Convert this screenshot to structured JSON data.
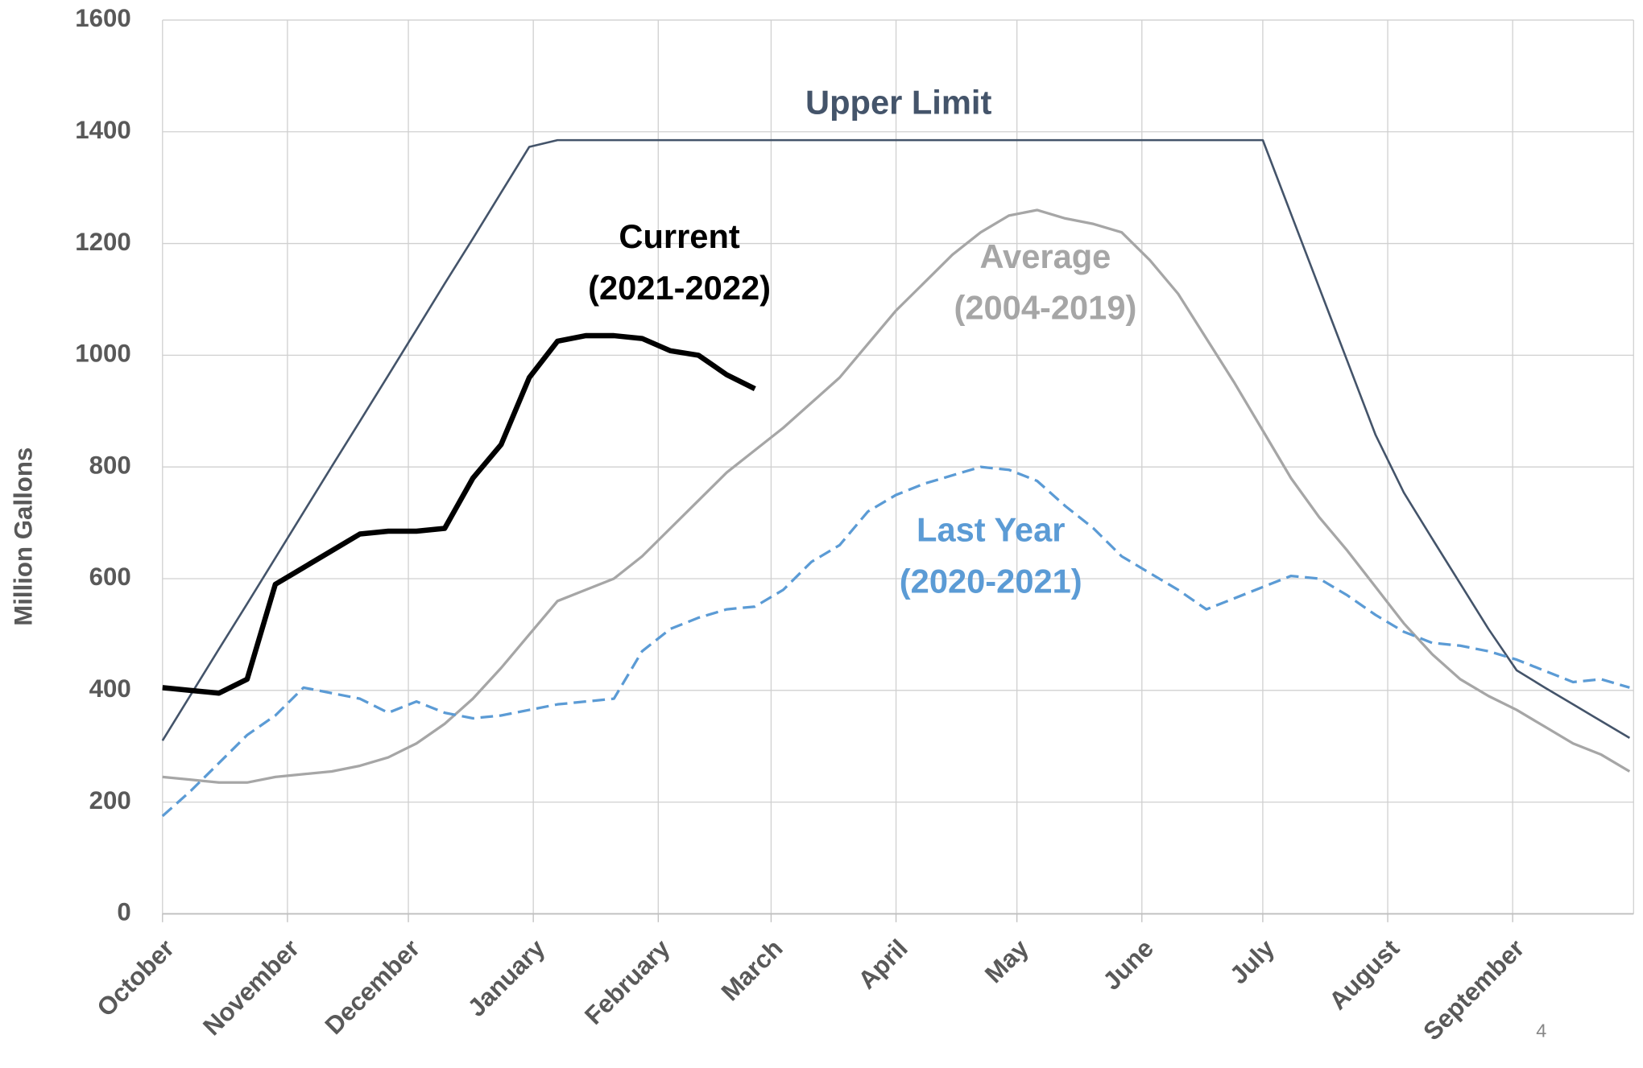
{
  "chart_data": {
    "type": "line",
    "y_label": "Million Gallons",
    "page_number": "4",
    "x": [
      0,
      7,
      14,
      21,
      28,
      35,
      42,
      49,
      56,
      63,
      70,
      77,
      84,
      91,
      98,
      105,
      112,
      119,
      126,
      133,
      140,
      147,
      154,
      161,
      168,
      175,
      182,
      189,
      196,
      203,
      210,
      217,
      224,
      231,
      238,
      245,
      252,
      259,
      266,
      273,
      280,
      287,
      294,
      301,
      308,
      315,
      322,
      329,
      336,
      343,
      350,
      357,
      364
    ],
    "xlim": [
      0,
      365
    ],
    "xticks": [
      {
        "value": 0,
        "label": "October"
      },
      {
        "value": 31,
        "label": "November"
      },
      {
        "value": 61,
        "label": "December"
      },
      {
        "value": 92,
        "label": "January"
      },
      {
        "value": 123,
        "label": "February"
      },
      {
        "value": 151,
        "label": "March"
      },
      {
        "value": 182,
        "label": "April"
      },
      {
        "value": 212,
        "label": "May"
      },
      {
        "value": 243,
        "label": "June"
      },
      {
        "value": 273,
        "label": "July"
      },
      {
        "value": 304,
        "label": "August"
      },
      {
        "value": 335,
        "label": "September"
      }
    ],
    "ylim": [
      0,
      1600
    ],
    "yticks": [
      0,
      200,
      400,
      600,
      800,
      1000,
      1200,
      1400,
      1600
    ],
    "grid": true,
    "series": [
      {
        "name": "Upper Limit",
        "color": "#44546a",
        "dashed": false,
        "width": 2,
        "values": [
          310,
          392,
          474,
          555,
          637,
          719,
          801,
          882,
          964,
          1046,
          1128,
          1209,
          1291,
          1373,
          1385,
          1385,
          1385,
          1385,
          1385,
          1385,
          1385,
          1385,
          1385,
          1385,
          1385,
          1385,
          1385,
          1385,
          1385,
          1385,
          1385,
          1385,
          1385,
          1385,
          1385,
          1385,
          1385,
          1385,
          1385,
          1385,
          1253,
          1121,
          989,
          857,
          754,
          672,
          591,
          510,
          436,
          405,
          375,
          345,
          315
        ]
      },
      {
        "name": "Current",
        "period": "(2021-2022)",
        "color": "#000000",
        "dashed": false,
        "width": 5,
        "values": [
          405,
          400,
          395,
          420,
          590,
          620,
          650,
          680,
          685,
          685,
          690,
          780,
          840,
          960,
          1025,
          1035,
          1035,
          1030,
          1008,
          1000,
          965,
          940,
          null,
          null,
          null,
          null,
          null,
          null,
          null,
          null,
          null,
          null,
          null,
          null,
          null,
          null,
          null,
          null,
          null,
          null,
          null,
          null,
          null,
          null,
          null,
          null,
          null,
          null,
          null,
          null,
          null,
          null,
          null
        ]
      },
      {
        "name": "Average",
        "period": "(2004-2019)",
        "color": "#a6a6a6",
        "dashed": false,
        "width": 2.5,
        "values": [
          245,
          240,
          235,
          235,
          245,
          250,
          255,
          265,
          280,
          305,
          340,
          385,
          440,
          500,
          560,
          580,
          600,
          640,
          690,
          740,
          790,
          830,
          870,
          915,
          960,
          1020,
          1080,
          1130,
          1180,
          1220,
          1250,
          1260,
          1245,
          1235,
          1220,
          1170,
          1110,
          1030,
          950,
          865,
          780,
          710,
          650,
          585,
          520,
          465,
          420,
          390,
          365,
          335,
          305,
          285,
          255
        ]
      },
      {
        "name": "Last Year",
        "period": "(2020-2021)",
        "color": "#5b9bd5",
        "dashed": true,
        "width": 2.5,
        "values": [
          175,
          220,
          270,
          320,
          355,
          405,
          395,
          385,
          360,
          380,
          360,
          350,
          355,
          365,
          375,
          380,
          385,
          470,
          510,
          530,
          545,
          550,
          580,
          630,
          660,
          720,
          750,
          770,
          785,
          800,
          795,
          775,
          730,
          690,
          640,
          610,
          580,
          545,
          565,
          585,
          605,
          600,
          570,
          535,
          505,
          485,
          480,
          470,
          455,
          435,
          415,
          420,
          405
        ]
      }
    ]
  }
}
